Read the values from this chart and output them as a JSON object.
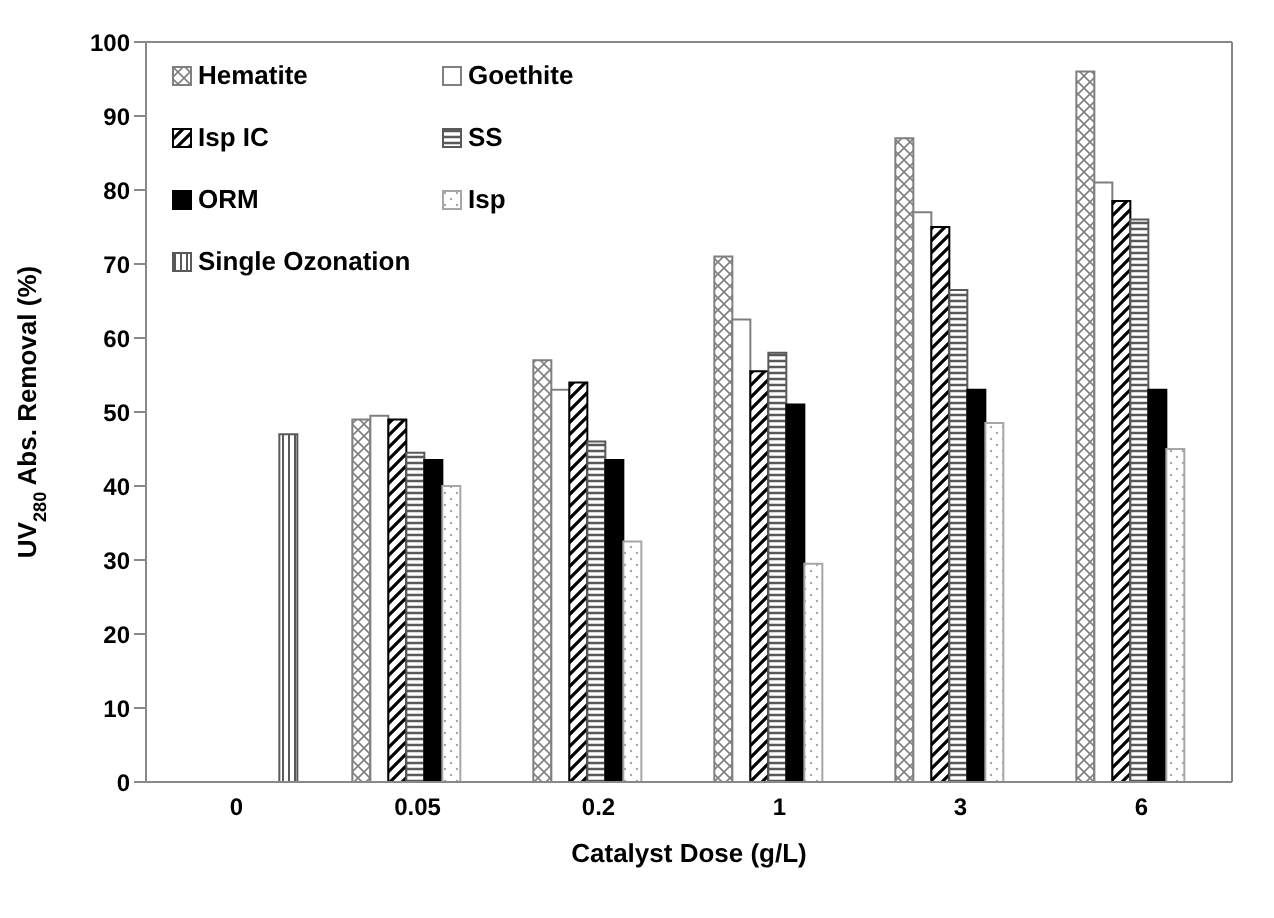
{
  "chart_data": {
    "type": "bar",
    "xlabel": "Catalyst Dose (g/L)",
    "ylabel": "UV$_{280}$ Abs. Removal (%)",
    "categories": [
      "0",
      "0.05",
      "0.2",
      "1",
      "3",
      "6"
    ],
    "series": [
      {
        "name": "Hematite",
        "color": "#7f7f7f",
        "values": [
          null,
          49,
          57,
          71,
          87,
          96
        ]
      },
      {
        "name": "Goethite",
        "color": "#7f7f7f",
        "values": [
          null,
          49.5,
          53,
          62.5,
          77,
          81
        ]
      },
      {
        "name": "Isp IC",
        "color": "#000000",
        "values": [
          null,
          49,
          54,
          55.5,
          75,
          78.5
        ]
      },
      {
        "name": "SS",
        "color": "#595959",
        "values": [
          null,
          44.5,
          46,
          58,
          66.5,
          76
        ]
      },
      {
        "name": "ORM",
        "color": "#000000",
        "values": [
          null,
          43.5,
          43.5,
          51,
          53,
          53
        ]
      },
      {
        "name": "Isp",
        "color": "#a6a6a6",
        "values": [
          null,
          40,
          32.5,
          29.5,
          48.5,
          45
        ]
      },
      {
        "name": "Single Ozonation",
        "color": "#595959",
        "values": [
          47,
          null,
          null,
          null,
          null,
          null
        ]
      }
    ],
    "ylim": [
      0,
      100
    ],
    "yticks": [
      0,
      10,
      20,
      30,
      40,
      50,
      60,
      70,
      80,
      90,
      100
    ],
    "grid": false,
    "legend": "top left"
  }
}
